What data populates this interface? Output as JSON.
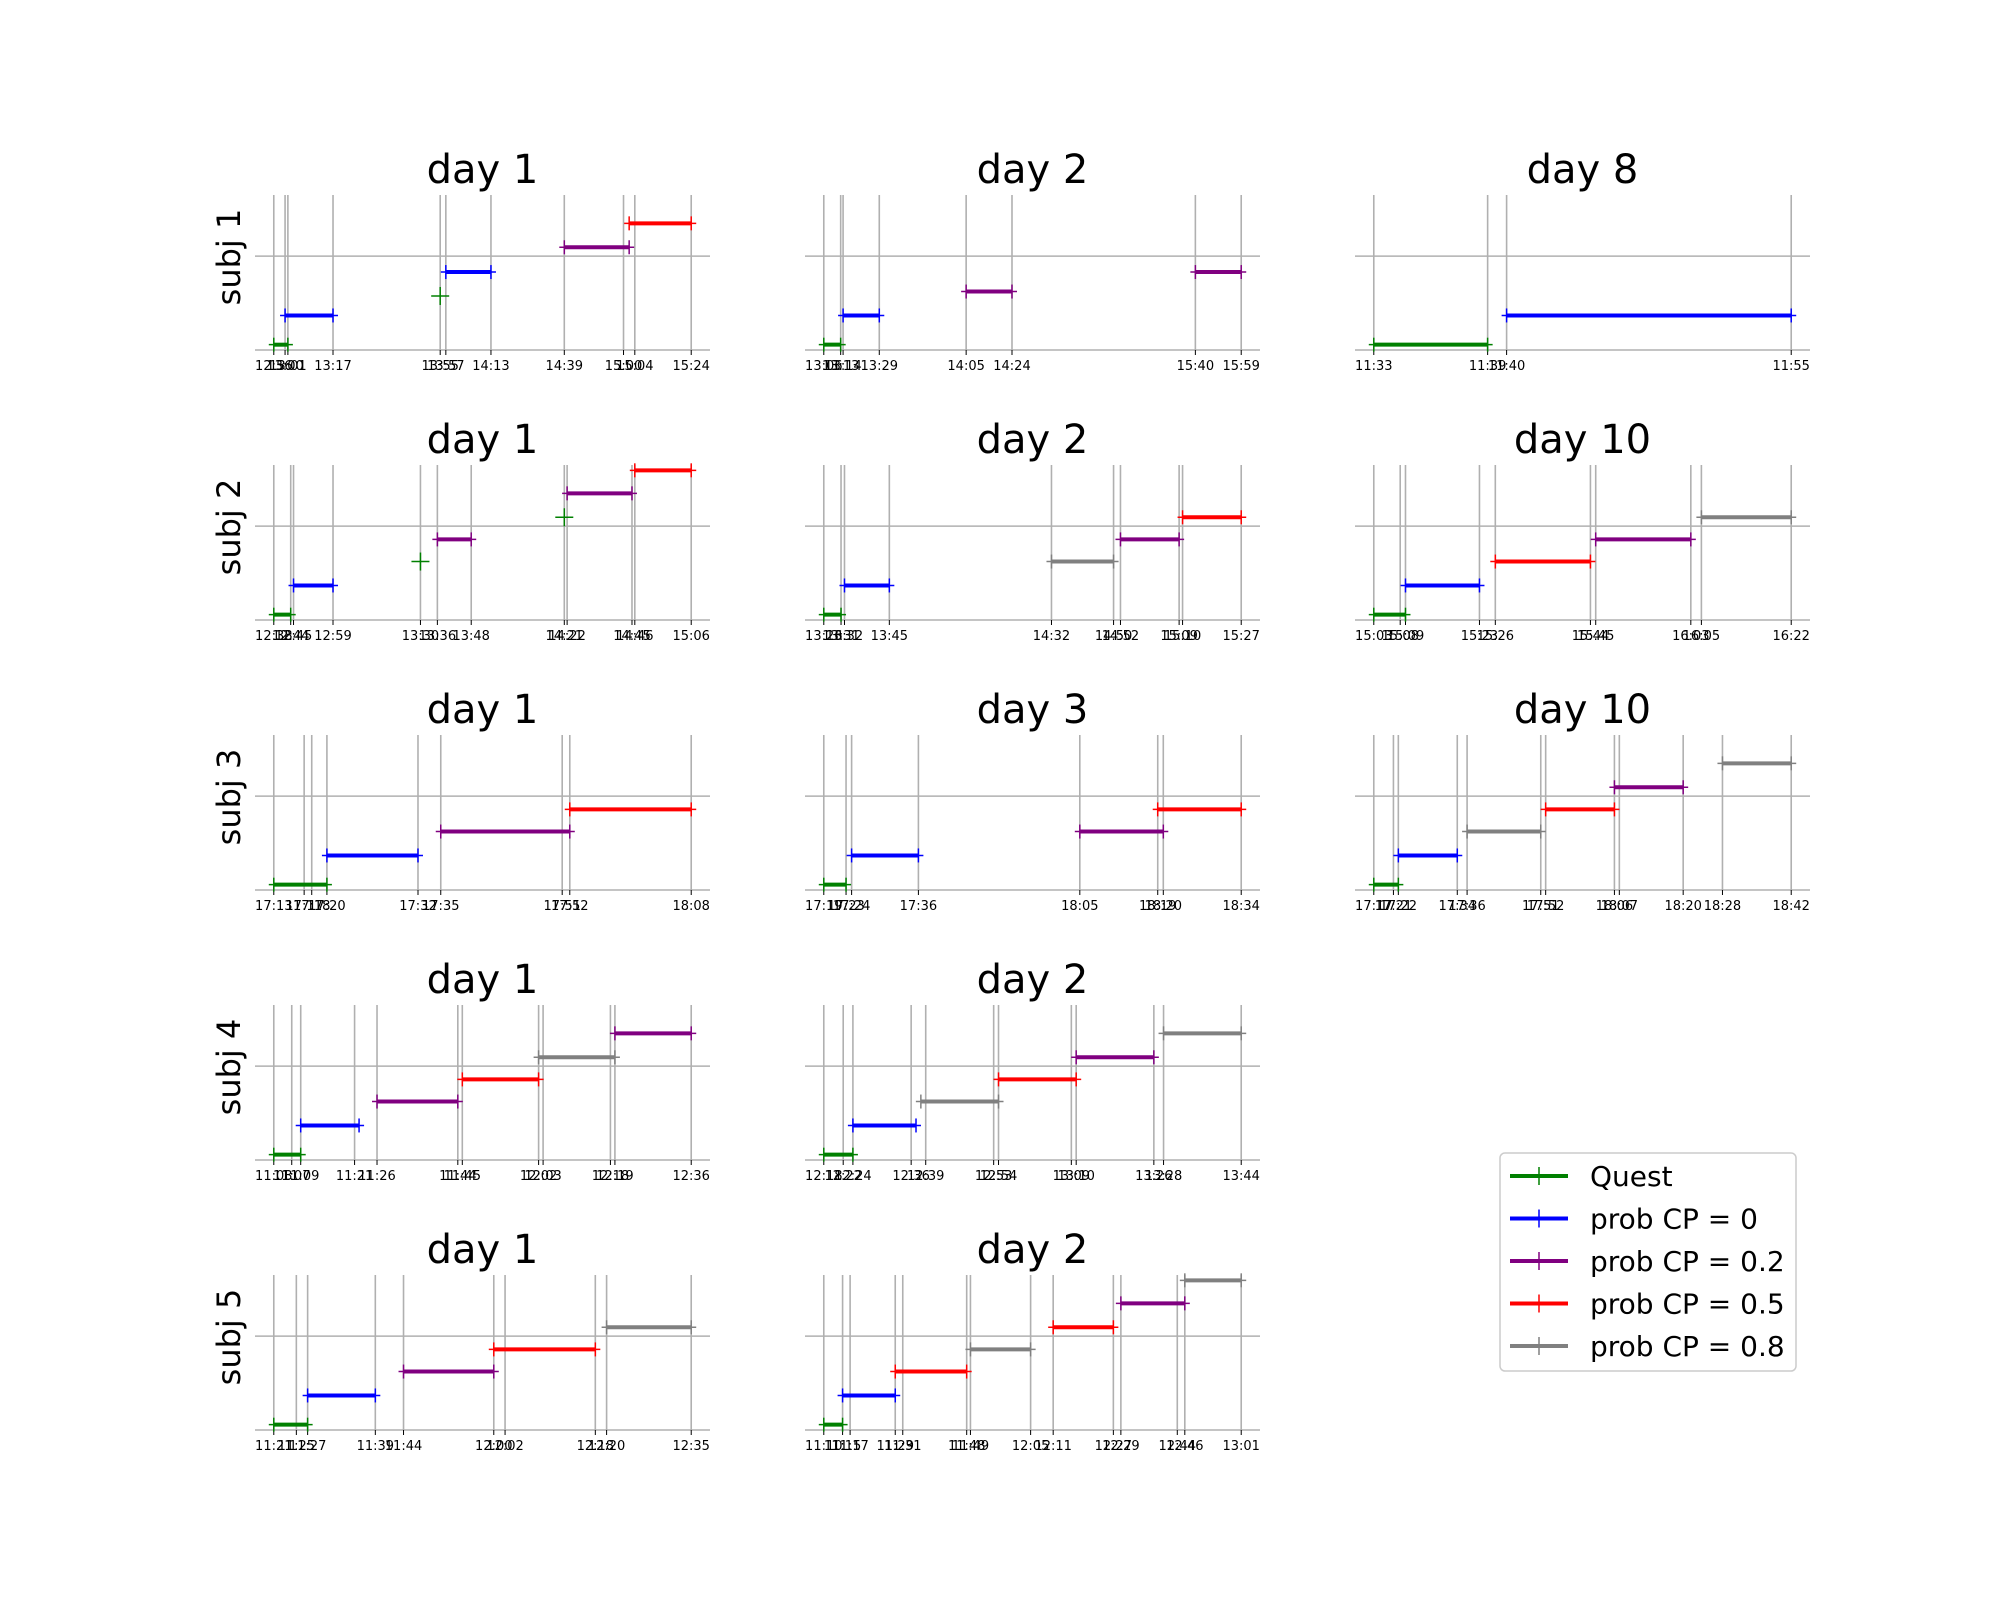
{
  "chart_data": {
    "type": "line",
    "legend": {
      "placement": "bottom-right",
      "entries": [
        {
          "label": "Quest",
          "color": "#008000"
        },
        {
          "label": "prob CP = 0",
          "color": "#0000ff"
        },
        {
          "label": "prob CP = 0.2",
          "color": "#800080"
        },
        {
          "label": "prob CP = 0.5",
          "color": "#ff0000"
        },
        {
          "label": "prob CP = 0.8",
          "color": "#808080"
        }
      ]
    },
    "grid": true,
    "rows": [
      {
        "label": "subj 1",
        "panels": [
          {
            "title": "day 1",
            "ticks": [
              "12:56",
              "13:00",
              "13:01",
              "13:17",
              "13:55",
              "13:57",
              "14:13",
              "14:39",
              "15:00",
              "15:04",
              "15:24"
            ],
            "segments": [
              {
                "s": "Quest",
                "start": "12:56",
                "end": "13:01",
                "y": 0.0
              },
              {
                "s": "prob CP = 0",
                "start": "13:00",
                "end": "13:17",
                "y": 0.33
              },
              {
                "s": "Quest",
                "start": "13:55",
                "end": "13:55",
                "y": 0.55
              },
              {
                "s": "prob CP = 0",
                "start": "13:57",
                "end": "14:13",
                "y": 0.82
              },
              {
                "s": "prob CP = 0.2",
                "start": "14:39",
                "end": "15:02",
                "y": 1.1
              },
              {
                "s": "prob CP = 0.5",
                "start": "15:02",
                "end": "15:24",
                "y": 1.37
              }
            ]
          },
          {
            "title": "day 2",
            "ticks": [
              "13:06",
              "13:13",
              "13:14",
              "13:29",
              "14:05",
              "14:24",
              "15:40",
              "15:59"
            ],
            "segments": [
              {
                "s": "Quest",
                "start": "13:06",
                "end": "13:13",
                "y": 0.0
              },
              {
                "s": "prob CP = 0",
                "start": "13:14",
                "end": "13:29",
                "y": 0.33
              },
              {
                "s": "prob CP = 0.2",
                "start": "14:05",
                "end": "14:24",
                "y": 0.6
              },
              {
                "s": "prob CP = 0.2",
                "start": "15:40",
                "end": "15:59",
                "y": 0.82
              }
            ]
          },
          {
            "title": "day 8",
            "ticks": [
              "11:33",
              "11:39",
              "11:40",
              "11:55"
            ],
            "segments": [
              {
                "s": "Quest",
                "start": "11:33",
                "end": "11:39",
                "y": 0.0
              },
              {
                "s": "prob CP = 0",
                "start": "11:40",
                "end": "11:55",
                "y": 0.33
              }
            ]
          }
        ]
      },
      {
        "label": "subj 2",
        "panels": [
          {
            "title": "day 1",
            "ticks": [
              "12:38",
              "12:44",
              "12:45",
              "12:59",
              "13:30",
              "13:36",
              "13:48",
              "14:21",
              "14:22",
              "14:45",
              "14:46",
              "15:06"
            ],
            "segments": [
              {
                "s": "Quest",
                "start": "12:38",
                "end": "12:44",
                "y": 0.0
              },
              {
                "s": "prob CP = 0",
                "start": "12:45",
                "end": "12:59",
                "y": 0.33
              },
              {
                "s": "Quest",
                "start": "13:30",
                "end": "13:30",
                "y": 0.6
              },
              {
                "s": "prob CP = 0.2",
                "start": "13:36",
                "end": "13:48",
                "y": 0.85
              },
              {
                "s": "Quest",
                "start": "14:21",
                "end": "14:21",
                "y": 1.1
              },
              {
                "s": "prob CP = 0.2",
                "start": "14:22",
                "end": "14:45",
                "y": 1.37
              },
              {
                "s": "prob CP = 0.5",
                "start": "14:46",
                "end": "15:06",
                "y": 1.63
              }
            ]
          },
          {
            "title": "day 2",
            "ticks": [
              "13:26",
              "13:31",
              "13:32",
              "13:45",
              "14:32",
              "14:50",
              "14:52",
              "15:09",
              "15:10",
              "15:27"
            ],
            "segments": [
              {
                "s": "Quest",
                "start": "13:26",
                "end": "13:31",
                "y": 0.0
              },
              {
                "s": "prob CP = 0",
                "start": "13:32",
                "end": "13:45",
                "y": 0.33
              },
              {
                "s": "prob CP = 0.8",
                "start": "14:32",
                "end": "14:50",
                "y": 0.6
              },
              {
                "s": "prob CP = 0.2",
                "start": "14:52",
                "end": "15:09",
                "y": 0.85
              },
              {
                "s": "prob CP = 0.5",
                "start": "15:10",
                "end": "15:27",
                "y": 1.1
              }
            ]
          },
          {
            "title": "day 10",
            "ticks": [
              "15:03",
              "15:08",
              "15:09",
              "15:23",
              "15:26",
              "15:44",
              "15:45",
              "16:03",
              "16:05",
              "16:22"
            ],
            "segments": [
              {
                "s": "Quest",
                "start": "15:03",
                "end": "15:09",
                "y": 0.0
              },
              {
                "s": "prob CP = 0",
                "start": "15:09",
                "end": "15:23",
                "y": 0.33
              },
              {
                "s": "prob CP = 0.5",
                "start": "15:26",
                "end": "15:44",
                "y": 0.6
              },
              {
                "s": "prob CP = 0.2",
                "start": "15:45",
                "end": "16:03",
                "y": 0.85
              },
              {
                "s": "prob CP = 0.8",
                "start": "16:05",
                "end": "16:22",
                "y": 1.1
              }
            ]
          }
        ]
      },
      {
        "label": "subj 3",
        "panels": [
          {
            "title": "day 1",
            "ticks": [
              "17:13",
              "17:17",
              "17:18",
              "17:20",
              "17:32",
              "17:35",
              "17:51",
              "17:52",
              "18:08"
            ],
            "segments": [
              {
                "s": "Quest",
                "start": "17:13",
                "end": "17:20",
                "y": 0.0
              },
              {
                "s": "prob CP = 0",
                "start": "17:20",
                "end": "17:32",
                "y": 0.33
              },
              {
                "s": "prob CP = 0.2",
                "start": "17:35",
                "end": "17:52",
                "y": 0.6
              },
              {
                "s": "prob CP = 0.5",
                "start": "17:52",
                "end": "18:08",
                "y": 0.85
              }
            ]
          },
          {
            "title": "day 3",
            "ticks": [
              "17:19",
              "17:23",
              "17:24",
              "17:36",
              "18:05",
              "18:19",
              "18:20",
              "18:34"
            ],
            "segments": [
              {
                "s": "Quest",
                "start": "17:19",
                "end": "17:23",
                "y": 0.0
              },
              {
                "s": "prob CP = 0",
                "start": "17:24",
                "end": "17:36",
                "y": 0.33
              },
              {
                "s": "prob CP = 0.2",
                "start": "18:05",
                "end": "18:20",
                "y": 0.6
              },
              {
                "s": "prob CP = 0.5",
                "start": "18:19",
                "end": "18:34",
                "y": 0.85
              }
            ]
          },
          {
            "title": "day 10",
            "ticks": [
              "17:17",
              "17:21",
              "17:22",
              "17:34",
              "17:36",
              "17:51",
              "17:52",
              "18:06",
              "18:07",
              "18:20",
              "18:28",
              "18:42"
            ],
            "segments": [
              {
                "s": "Quest",
                "start": "17:17",
                "end": "17:22",
                "y": 0.0
              },
              {
                "s": "prob CP = 0",
                "start": "17:22",
                "end": "17:34",
                "y": 0.33
              },
              {
                "s": "prob CP = 0.8",
                "start": "17:36",
                "end": "17:51",
                "y": 0.6
              },
              {
                "s": "prob CP = 0.5",
                "start": "17:52",
                "end": "18:06",
                "y": 0.85
              },
              {
                "s": "prob CP = 0.2",
                "start": "18:06",
                "end": "18:20",
                "y": 1.1
              },
              {
                "s": "prob CP = 0.8",
                "start": "18:28",
                "end": "18:42",
                "y": 1.37
              }
            ]
          }
        ]
      },
      {
        "label": "subj 4",
        "panels": [
          {
            "title": "day 1",
            "ticks": [
              "11:03",
              "11:07",
              "11:09",
              "11:21",
              "11:26",
              "11:44",
              "11:45",
              "12:02",
              "12:03",
              "12:18",
              "12:19",
              "12:36"
            ],
            "segments": [
              {
                "s": "Quest",
                "start": "11:03",
                "end": "11:09",
                "y": 0.0
              },
              {
                "s": "prob CP = 0",
                "start": "11:09",
                "end": "11:22",
                "y": 0.33
              },
              {
                "s": "prob CP = 0.2",
                "start": "11:26",
                "end": "11:44",
                "y": 0.6
              },
              {
                "s": "prob CP = 0.5",
                "start": "11:45",
                "end": "12:02",
                "y": 0.85
              },
              {
                "s": "prob CP = 0.8",
                "start": "12:02",
                "end": "12:19",
                "y": 1.1
              },
              {
                "s": "prob CP = 0.2",
                "start": "12:19",
                "end": "12:36",
                "y": 1.37
              }
            ]
          },
          {
            "title": "day 2",
            "ticks": [
              "12:18",
              "12:22",
              "12:24",
              "12:36",
              "12:39",
              "12:53",
              "12:54",
              "13:09",
              "13:10",
              "13:26",
              "13:28",
              "13:44"
            ],
            "segments": [
              {
                "s": "Quest",
                "start": "12:18",
                "end": "12:24",
                "y": 0.0
              },
              {
                "s": "prob CP = 0",
                "start": "12:24",
                "end": "12:37",
                "y": 0.33
              },
              {
                "s": "prob CP = 0.8",
                "start": "12:38",
                "end": "12:54",
                "y": 0.6
              },
              {
                "s": "prob CP = 0.5",
                "start": "12:54",
                "end": "13:10",
                "y": 0.85
              },
              {
                "s": "prob CP = 0.2",
                "start": "13:10",
                "end": "13:26",
                "y": 1.1
              },
              {
                "s": "prob CP = 0.8",
                "start": "13:28",
                "end": "13:44",
                "y": 1.37
              }
            ]
          }
        ]
      },
      {
        "label": "subj 5",
        "panels": [
          {
            "title": "day 1",
            "ticks": [
              "11:21",
              "11:25",
              "11:27",
              "11:39",
              "11:44",
              "12:00",
              "12:02",
              "12:18",
              "12:20",
              "12:35"
            ],
            "segments": [
              {
                "s": "Quest",
                "start": "11:21",
                "end": "11:27",
                "y": 0.0
              },
              {
                "s": "prob CP = 0",
                "start": "11:27",
                "end": "11:39",
                "y": 0.33
              },
              {
                "s": "prob CP = 0.2",
                "start": "11:44",
                "end": "12:00",
                "y": 0.6
              },
              {
                "s": "prob CP = 0.5",
                "start": "12:00",
                "end": "12:18",
                "y": 0.85
              },
              {
                "s": "prob CP = 0.8",
                "start": "12:20",
                "end": "12:35",
                "y": 1.1
              }
            ]
          },
          {
            "title": "day 2",
            "ticks": [
              "11:10",
              "11:15",
              "11:17",
              "11:29",
              "11:31",
              "11:48",
              "11:49",
              "12:05",
              "12:11",
              "12:27",
              "12:29",
              "12:44",
              "12:46",
              "13:01"
            ],
            "segments": [
              {
                "s": "Quest",
                "start": "11:10",
                "end": "11:15",
                "y": 0.0
              },
              {
                "s": "prob CP = 0",
                "start": "11:15",
                "end": "11:29",
                "y": 0.33
              },
              {
                "s": "prob CP = 0.5",
                "start": "11:29",
                "end": "11:48",
                "y": 0.6
              },
              {
                "s": "prob CP = 0.8",
                "start": "11:49",
                "end": "12:05",
                "y": 0.85
              },
              {
                "s": "prob CP = 0.5",
                "start": "12:11",
                "end": "12:27",
                "y": 1.1
              },
              {
                "s": "prob CP = 0.2",
                "start": "12:29",
                "end": "12:46",
                "y": 1.37
              },
              {
                "s": "prob CP = 0.8",
                "start": "12:46",
                "end": "13:01",
                "y": 1.63
              }
            ]
          }
        ]
      }
    ]
  }
}
